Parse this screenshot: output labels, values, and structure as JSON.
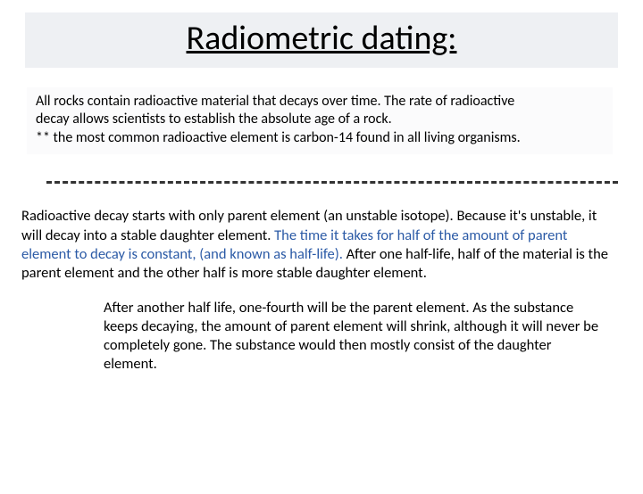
{
  "title": "Radiometric dating:",
  "intro": {
    "line1": "All rocks contain radioactive material that decays over time. The rate of radioactive",
    "line2": "decay allows scientists to establish the absolute age of a rock.",
    "line3": "** the most common radioactive element is carbon-14 found in all living organisms."
  },
  "decay": {
    "part1": "Radioactive decay starts with only parent element (an unstable isotope). Because it's unstable, it will decay into a stable daughter element. ",
    "highlight": "The time it takes for half of the amount of parent element to decay is constant, (and known as half-life).",
    "part2": " After one half-life, half of the material is the parent element and the other half is more stable daughter element."
  },
  "after": "After another half life, one-fourth will be the parent element. As the substance keeps decaying, the amount of parent element will shrink, although it will never be completely gone. The substance would then mostly consist of the daughter element.",
  "colors": {
    "title_bg": "#eef0f3",
    "intro_bg": "#fbfbfc",
    "highlight": "#2b5aa6",
    "text": "#000000",
    "dash": "#333333"
  }
}
